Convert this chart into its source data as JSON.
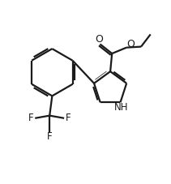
{
  "background_color": "#ffffff",
  "line_color": "#1a1a1a",
  "line_width": 1.6,
  "font_size": 8.5,
  "figsize": [
    2.11,
    2.27
  ],
  "dpi": 100,
  "xlim": [
    0,
    10
  ],
  "ylim": [
    0,
    10
  ]
}
